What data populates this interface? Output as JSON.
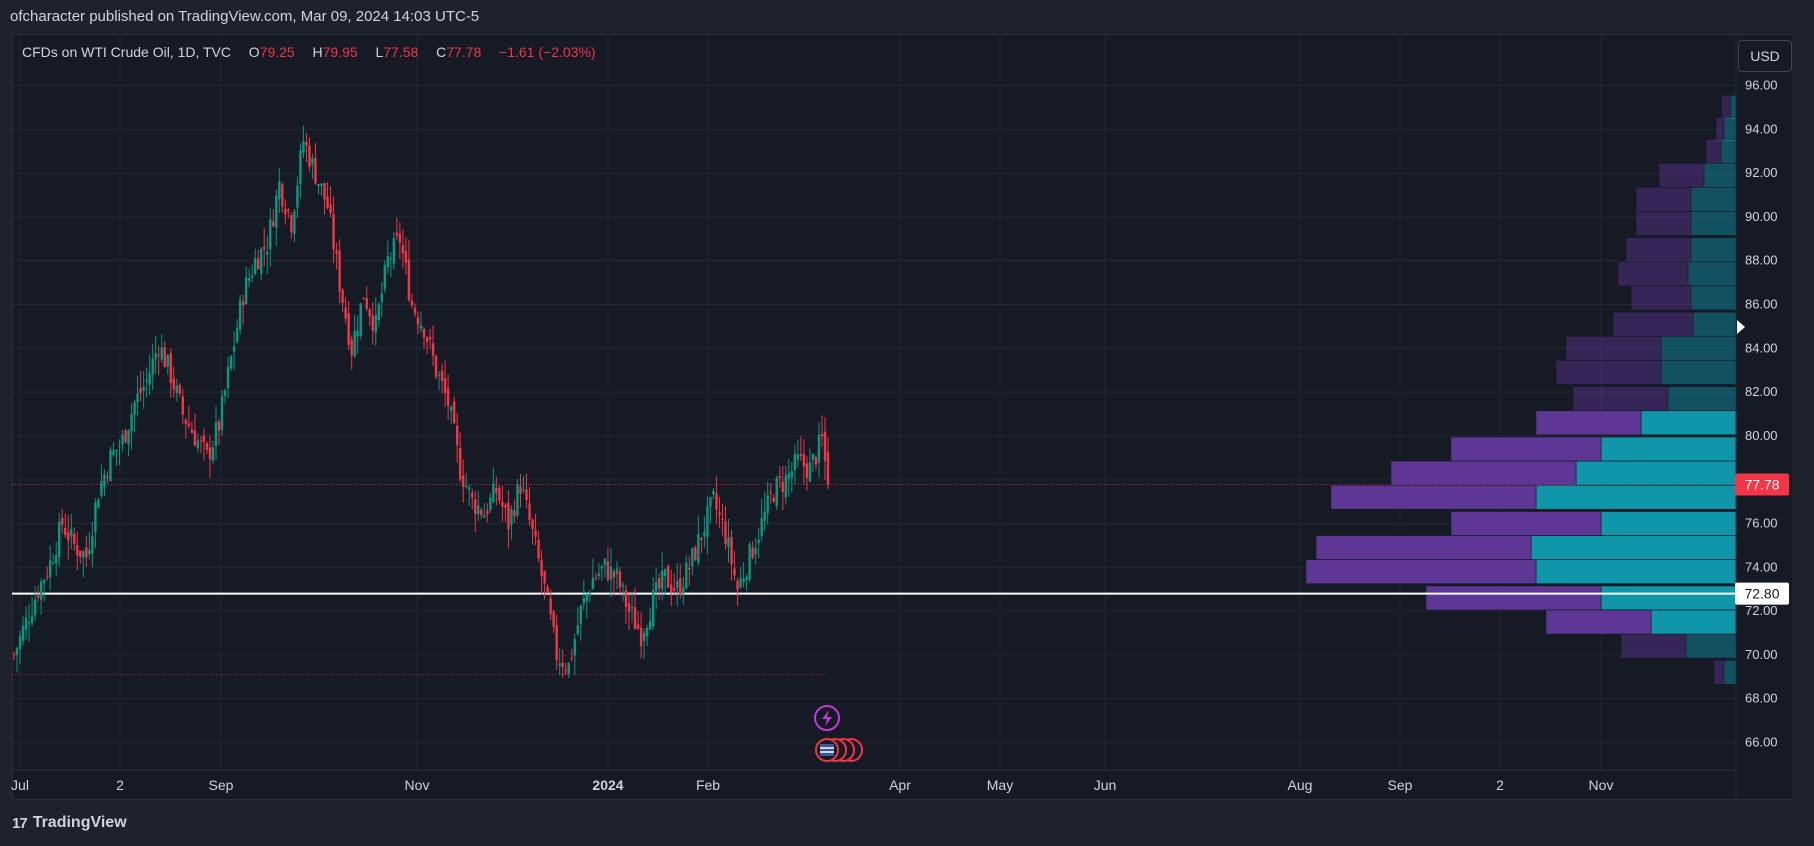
{
  "header": {
    "published_text": "ofcharacter published on TradingView.com, Mar 09, 2024 14:03 UTC-5"
  },
  "legend": {
    "symbol": "CFDs on WTI Crude Oil, 1D, TVC",
    "open_label": "O",
    "open_value": "79.25",
    "high_label": "H",
    "high_value": "79.95",
    "low_label": "L",
    "low_value": "77.58",
    "close_label": "C",
    "close_value": "77.78",
    "change": "−1.61 (−2.03%)"
  },
  "currency_button": "USD",
  "footer": {
    "logo_text": "TradingView",
    "logo_icon": "tradingview-logo-icon"
  },
  "colors": {
    "background": "#161a25",
    "up": "#089981",
    "down": "#f23645",
    "vp_up": "#0f96a8",
    "vp_down": "#5d3696",
    "hline": "#ffffff"
  },
  "chart_data": {
    "type": "candlestick",
    "symbol": "CFDs on WTI Crude Oil",
    "interval": "1D",
    "ylim": [
      64.5,
      97
    ],
    "y_ticks": [
      "96.00",
      "94.00",
      "92.00",
      "90.00",
      "88.00",
      "86.00",
      "84.00",
      "82.00",
      "80.00",
      "78.00",
      "76.00",
      "74.00",
      "72.00",
      "70.00",
      "68.00",
      "66.00"
    ],
    "x_ticks": [
      {
        "label": "Jul",
        "bold": false
      },
      {
        "label": "2",
        "bold": false
      },
      {
        "label": "Sep",
        "bold": false
      },
      {
        "label": "Nov",
        "bold": false
      },
      {
        "label": "2024",
        "bold": true
      },
      {
        "label": "Feb",
        "bold": false
      },
      {
        "label": "Apr",
        "bold": false
      },
      {
        "label": "May",
        "bold": false
      },
      {
        "label": "Jun",
        "bold": false
      },
      {
        "label": "Aug",
        "bold": false
      },
      {
        "label": "Sep",
        "bold": false
      },
      {
        "label": "2",
        "bold": false
      },
      {
        "label": "Nov",
        "bold": false
      }
    ],
    "last_price": {
      "value": 77.78,
      "label": "77.78"
    },
    "horizontal_line": {
      "value": 72.8,
      "label": "72.80"
    },
    "dotted_level": 69.1,
    "price_path": [
      [
        0,
        70.0
      ],
      [
        4,
        71.5
      ],
      [
        8,
        73.0
      ],
      [
        12,
        74.2
      ],
      [
        16,
        76.0
      ],
      [
        20,
        75.0
      ],
      [
        24,
        74.5
      ],
      [
        28,
        77.5
      ],
      [
        32,
        79.0
      ],
      [
        36,
        79.8
      ],
      [
        40,
        81.5
      ],
      [
        44,
        82.5
      ],
      [
        48,
        84.2
      ],
      [
        52,
        82.8
      ],
      [
        56,
        81.0
      ],
      [
        60,
        80.0
      ],
      [
        64,
        79.0
      ],
      [
        68,
        80.5
      ],
      [
        72,
        83.5
      ],
      [
        76,
        86.5
      ],
      [
        80,
        88.0
      ],
      [
        84,
        88.8
      ],
      [
        88,
        91.5
      ],
      [
        92,
        89.8
      ],
      [
        96,
        93.5
      ],
      [
        100,
        92.0
      ],
      [
        104,
        90.5
      ],
      [
        108,
        87.0
      ],
      [
        112,
        84.0
      ],
      [
        116,
        86.5
      ],
      [
        120,
        85.0
      ],
      [
        124,
        88.0
      ],
      [
        128,
        89.0
      ],
      [
        132,
        86.0
      ],
      [
        136,
        85.0
      ],
      [
        140,
        83.0
      ],
      [
        144,
        81.5
      ],
      [
        148,
        78.5
      ],
      [
        152,
        77.0
      ],
      [
        156,
        76.5
      ],
      [
        160,
        77.5
      ],
      [
        164,
        76.0
      ],
      [
        168,
        77.8
      ],
      [
        172,
        75.5
      ],
      [
        176,
        73.0
      ],
      [
        180,
        70.0
      ],
      [
        184,
        69.5
      ],
      [
        188,
        72.0
      ],
      [
        192,
        73.5
      ],
      [
        196,
        74.0
      ],
      [
        200,
        73.5
      ],
      [
        204,
        72.0
      ],
      [
        208,
        71.0
      ],
      [
        212,
        72.5
      ],
      [
        216,
        73.5
      ],
      [
        220,
        73.0
      ],
      [
        224,
        74.0
      ],
      [
        228,
        75.5
      ],
      [
        232,
        77.0
      ],
      [
        236,
        75.5
      ],
      [
        240,
        73.0
      ],
      [
        244,
        74.5
      ],
      [
        248,
        76.0
      ],
      [
        252,
        77.5
      ],
      [
        256,
        78.0
      ],
      [
        260,
        78.8
      ],
      [
        264,
        78.5
      ],
      [
        268,
        79.8
      ],
      [
        270,
        77.8
      ]
    ],
    "volume_profile": [
      {
        "price": 95.0,
        "up": 0.55,
        "down": 0.9,
        "faded": true
      },
      {
        "price": 94.0,
        "up": 1.2,
        "down": 0.8,
        "faded": true
      },
      {
        "price": 93.0,
        "up": 1.5,
        "down": 1.5,
        "faded": true
      },
      {
        "price": 91.9,
        "up": 3.2,
        "down": 4.5,
        "faded": true
      },
      {
        "price": 90.8,
        "up": 4.5,
        "down": 5.5,
        "faded": true
      },
      {
        "price": 89.7,
        "up": 4.5,
        "down": 5.5,
        "faded": true
      },
      {
        "price": 88.5,
        "up": 4.5,
        "down": 6.5,
        "faded": true
      },
      {
        "price": 87.4,
        "up": 4.8,
        "down": 7.0,
        "faded": true
      },
      {
        "price": 86.3,
        "up": 4.5,
        "down": 6.0,
        "faded": true
      },
      {
        "price": 85.1,
        "up": 4.3,
        "down": 8.0,
        "faded": true
      },
      {
        "price": 84.0,
        "up": 7.5,
        "down": 9.5,
        "faded": true
      },
      {
        "price": 82.9,
        "up": 7.5,
        "down": 10.5,
        "faded": true
      },
      {
        "price": 81.7,
        "up": 6.8,
        "down": 9.5,
        "faded": true
      },
      {
        "price": 80.6,
        "up": 9.5,
        "down": 10.5,
        "faded": false
      },
      {
        "price": 79.4,
        "up": 13.5,
        "down": 15.0,
        "faded": false
      },
      {
        "price": 78.3,
        "up": 16.0,
        "down": 18.5,
        "faded": false
      },
      {
        "price": 77.2,
        "up": 20.0,
        "down": 20.5,
        "faded": false
      },
      {
        "price": 76.0,
        "up": 13.5,
        "down": 15.0,
        "faded": false
      },
      {
        "price": 74.9,
        "up": 20.5,
        "down": 21.5,
        "faded": false
      },
      {
        "price": 73.8,
        "up": 20.0,
        "down": 23.0,
        "faded": false
      },
      {
        "price": 72.6,
        "up": 13.5,
        "down": 17.5,
        "faded": false
      },
      {
        "price": 71.5,
        "up": 8.5,
        "down": 10.5,
        "faded": false
      },
      {
        "price": 70.4,
        "up": 5.0,
        "down": 6.5,
        "faded": true
      },
      {
        "price": 69.2,
        "up": 1.2,
        "down": 1.0,
        "faded": true
      }
    ]
  }
}
